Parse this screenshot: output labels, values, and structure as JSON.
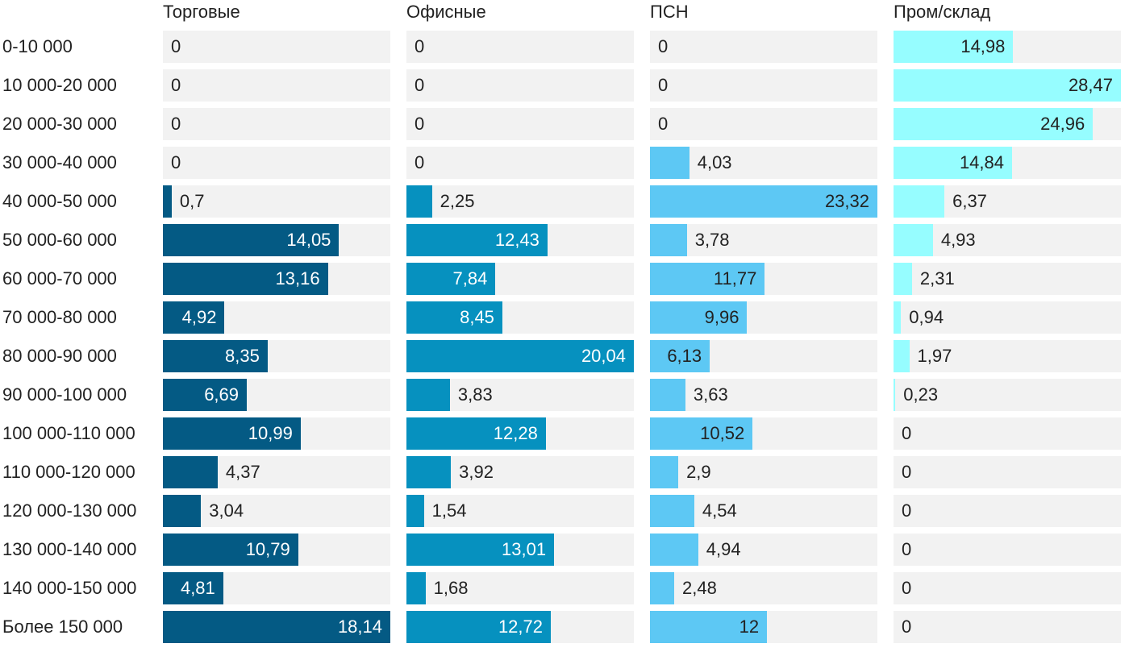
{
  "chart_data": {
    "type": "bar",
    "orientation": "horizontal",
    "layout": "small-multiples",
    "title": "",
    "xlabel": "",
    "ylabel": "",
    "categories": [
      "0-10 000",
      "10 000-20 000",
      "20 000-30 000",
      "30 000-40 000",
      "40 000-50 000",
      "50 000-60 000",
      "60 000-70 000",
      "70 000-80 000",
      "80 000-90 000",
      "90 000-100 000",
      "100 000-110 000",
      "110 000-120 000",
      "120 000-130 000",
      "130 000-140 000",
      "140 000-150 000",
      "Более 150 000"
    ],
    "series": [
      {
        "name": "Торговые",
        "color": "#045a84",
        "label_color_inside": "#ffffff",
        "max": 18.14,
        "values": [
          0,
          0,
          0,
          0,
          0.7,
          14.05,
          13.16,
          4.92,
          8.35,
          6.69,
          10.99,
          4.37,
          3.04,
          10.79,
          4.81,
          18.14
        ],
        "labels": [
          "0",
          "0",
          "0",
          "0",
          "0,7",
          "14,05",
          "13,16",
          "4,92",
          "8,35",
          "6,69",
          "10,99",
          "4,37",
          "3,04",
          "10,79",
          "4,81",
          "18,14"
        ]
      },
      {
        "name": "Офисные",
        "color": "#0691bf",
        "label_color_inside": "#ffffff",
        "max": 20.04,
        "values": [
          0,
          0,
          0,
          0,
          2.25,
          12.43,
          7.84,
          8.45,
          20.04,
          3.83,
          12.28,
          3.92,
          1.54,
          13.01,
          1.68,
          12.72
        ],
        "labels": [
          "0",
          "0",
          "0",
          "0",
          "2,25",
          "12,43",
          "7,84",
          "8,45",
          "20,04",
          "3,83",
          "12,28",
          "3,92",
          "1,54",
          "13,01",
          "1,68",
          "12,72"
        ]
      },
      {
        "name": "ПСН",
        "color": "#5dc8f4",
        "label_color_inside": "#222222",
        "max": 23.32,
        "values": [
          0,
          0,
          0,
          4.03,
          23.32,
          3.78,
          11.77,
          9.96,
          6.13,
          3.63,
          10.52,
          2.9,
          4.54,
          4.94,
          2.48,
          12
        ],
        "labels": [
          "0",
          "0",
          "0",
          "4,03",
          "23,32",
          "3,78",
          "11,77",
          "9,96",
          "6,13",
          "3,63",
          "10,52",
          "2,9",
          "4,54",
          "4,94",
          "2,48",
          "12"
        ]
      },
      {
        "name": "Пром/склад",
        "color": "#96fdff",
        "label_color_inside": "#222222",
        "max": 28.47,
        "values": [
          14.98,
          28.47,
          24.96,
          14.84,
          6.37,
          4.93,
          2.31,
          0.94,
          1.97,
          0.23,
          0,
          0,
          0,
          0,
          0,
          0
        ],
        "labels": [
          "14,98",
          "28,47",
          "24,96",
          "14,84",
          "6,37",
          "4,93",
          "2,31",
          "0,94",
          "1,97",
          "0,23",
          "0",
          "0",
          "0",
          "0",
          "0",
          "0"
        ]
      }
    ]
  }
}
